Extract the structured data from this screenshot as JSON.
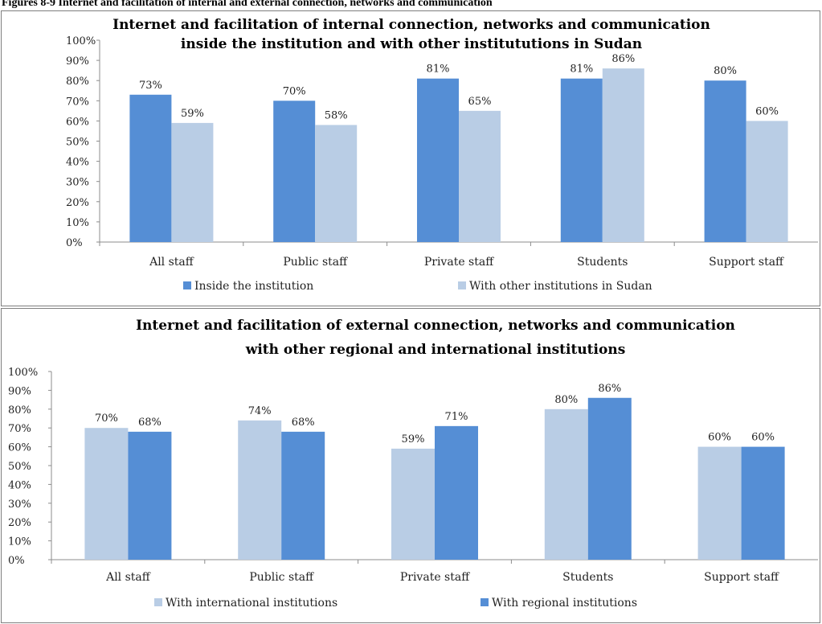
{
  "caption": "Figures 8-9 Internet and facilitation of internal and external connection, networks and communication",
  "colors": {
    "dark": "#558ed5",
    "light": "#b9cde5"
  },
  "chart_data": [
    {
      "type": "bar",
      "title_lines": [
        "Internet and facilitation of internal connection, networks and communication",
        "inside the institution and with other institututions in Sudan"
      ],
      "categories": [
        "All staff",
        "Public staff",
        "Private staff",
        "Students",
        "Support staff"
      ],
      "series": [
        {
          "name": "Inside the institution",
          "values": [
            73,
            70,
            81,
            81,
            80
          ],
          "color": "#558ed5"
        },
        {
          "name": "With other institutions in Sudan",
          "values": [
            59,
            58,
            65,
            86,
            60
          ],
          "color": "#b9cde5"
        }
      ],
      "ylim": [
        0,
        100
      ],
      "yticks": [
        "0%",
        "10%",
        "20%",
        "30%",
        "40%",
        "50%",
        "60%",
        "70%",
        "80%",
        "90%",
        "100%"
      ],
      "legend": "bottom",
      "grid": false
    },
    {
      "type": "bar",
      "title_lines": [
        "Internet and facilitation of external connection, networks and communication",
        "with other regional and international institutions"
      ],
      "categories": [
        "All staff",
        "Public staff",
        "Private staff",
        "Students",
        "Support staff"
      ],
      "series": [
        {
          "name": "With international institutions",
          "values": [
            70,
            74,
            59,
            80,
            60
          ],
          "color": "#b9cde5"
        },
        {
          "name": "With regional institutions",
          "values": [
            68,
            68,
            71,
            86,
            60
          ],
          "color": "#558ed5"
        }
      ],
      "ylim": [
        0,
        100
      ],
      "yticks": [
        "0%",
        "10%",
        "20%",
        "30%",
        "40%",
        "50%",
        "60%",
        "70%",
        "80%",
        "90%",
        "100%"
      ],
      "legend": "bottom",
      "grid": false
    }
  ]
}
